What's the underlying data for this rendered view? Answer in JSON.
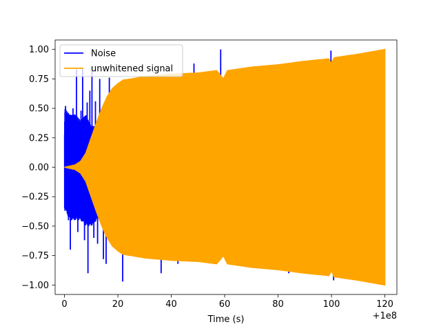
{
  "chart_data": {
    "type": "line",
    "title": "",
    "xlabel": "Time (s)",
    "ylabel": "",
    "x_offset_label": "+1e8",
    "xlim": [
      -3.5,
      124.5
    ],
    "ylim": [
      -1.08,
      1.08
    ],
    "x_ticks": [
      0,
      20,
      40,
      60,
      80,
      100,
      120
    ],
    "x_tick_labels": [
      "0",
      "20",
      "40",
      "60",
      "80",
      "100",
      "120"
    ],
    "y_ticks": [
      -1.0,
      -0.75,
      -0.5,
      -0.25,
      0.0,
      0.25,
      0.5,
      0.75,
      1.0
    ],
    "y_tick_labels": [
      "−1.00",
      "−0.75",
      "−0.50",
      "−0.25",
      "0.00",
      "0.25",
      "0.50",
      "0.75",
      "1.00"
    ],
    "grid": false,
    "legend_position": "top-left",
    "series": [
      {
        "name": "Noise",
        "color": "#0000ff",
        "envelope": {
          "x": [
            0,
            2,
            4,
            6,
            8,
            10,
            12,
            14,
            16,
            18,
            20,
            25,
            30,
            40,
            50,
            60,
            70,
            80,
            90,
            100,
            110,
            120
          ],
          "upper": [
            0.5,
            0.45,
            0.45,
            0.4,
            0.45,
            0.35,
            0.35,
            0.35,
            0.3,
            0.25,
            0.0,
            0.0,
            0.0,
            0.0,
            0.0,
            0.0,
            0.0,
            0.0,
            0.0,
            0.0,
            0.0,
            0.0
          ],
          "lower": [
            -0.35,
            -0.45,
            -0.45,
            -0.45,
            -0.5,
            -0.5,
            -0.45,
            -0.4,
            -0.35,
            -0.3,
            0.0,
            0.0,
            0.0,
            0.0,
            0.0,
            0.0,
            0.0,
            0.0,
            0.0,
            0.0,
            0.0,
            0.0
          ]
        },
        "spikes": [
          {
            "x": 0.2,
            "y": -0.37
          },
          {
            "x": 0.4,
            "y": 0.52
          },
          {
            "x": 1.0,
            "y": 0.35
          },
          {
            "x": 1.5,
            "y": -0.45
          },
          {
            "x": 2.2,
            "y": -0.7
          },
          {
            "x": 3.2,
            "y": 0.5
          },
          {
            "x": 4.5,
            "y": 0.83
          },
          {
            "x": 5.0,
            "y": -0.55
          },
          {
            "x": 6.2,
            "y": 0.48
          },
          {
            "x": 6.8,
            "y": 0.84
          },
          {
            "x": 7.5,
            "y": -0.62
          },
          {
            "x": 8.5,
            "y": 0.55
          },
          {
            "x": 8.8,
            "y": -0.9
          },
          {
            "x": 9.5,
            "y": 0.65
          },
          {
            "x": 10.3,
            "y": 0.85
          },
          {
            "x": 11.0,
            "y": -0.6
          },
          {
            "x": 11.6,
            "y": 0.56
          },
          {
            "x": 12.4,
            "y": -0.65
          },
          {
            "x": 13.2,
            "y": 0.75
          },
          {
            "x": 14.6,
            "y": -0.78
          },
          {
            "x": 15.6,
            "y": -0.82
          },
          {
            "x": 16.8,
            "y": 0.76
          },
          {
            "x": 21.8,
            "y": -0.97
          },
          {
            "x": 36.2,
            "y": -0.9
          },
          {
            "x": 42.5,
            "y": -0.82
          },
          {
            "x": 48.5,
            "y": 0.88
          },
          {
            "x": 58.5,
            "y": 1.0
          },
          {
            "x": 84.0,
            "y": -0.9
          },
          {
            "x": 84.8,
            "y": 0.88
          },
          {
            "x": 99.8,
            "y": 0.99
          },
          {
            "x": 100.8,
            "y": -0.96
          }
        ]
      },
      {
        "name": "unwhitened signal",
        "color": "#ffa500",
        "envelope": {
          "x": [
            0,
            2,
            4,
            6,
            8,
            10,
            12,
            14,
            16,
            18,
            20,
            22,
            25,
            30,
            40,
            50,
            57,
            58.5,
            59.5,
            61,
            70,
            80,
            90,
            99,
            100,
            101,
            110,
            120
          ],
          "upper": [
            0.0,
            0.01,
            0.02,
            0.05,
            0.12,
            0.25,
            0.38,
            0.5,
            0.6,
            0.67,
            0.71,
            0.74,
            0.75,
            0.77,
            0.79,
            0.8,
            0.82,
            0.78,
            0.75,
            0.82,
            0.85,
            0.87,
            0.9,
            0.92,
            0.88,
            0.93,
            0.96,
            1.0
          ],
          "lower": [
            0.0,
            -0.01,
            -0.02,
            -0.05,
            -0.12,
            -0.25,
            -0.38,
            -0.5,
            -0.6,
            -0.67,
            -0.71,
            -0.74,
            -0.75,
            -0.77,
            -0.79,
            -0.8,
            -0.82,
            -0.78,
            -0.75,
            -0.82,
            -0.85,
            -0.87,
            -0.9,
            -0.92,
            -0.88,
            -0.93,
            -0.96,
            -1.0
          ]
        }
      }
    ]
  }
}
